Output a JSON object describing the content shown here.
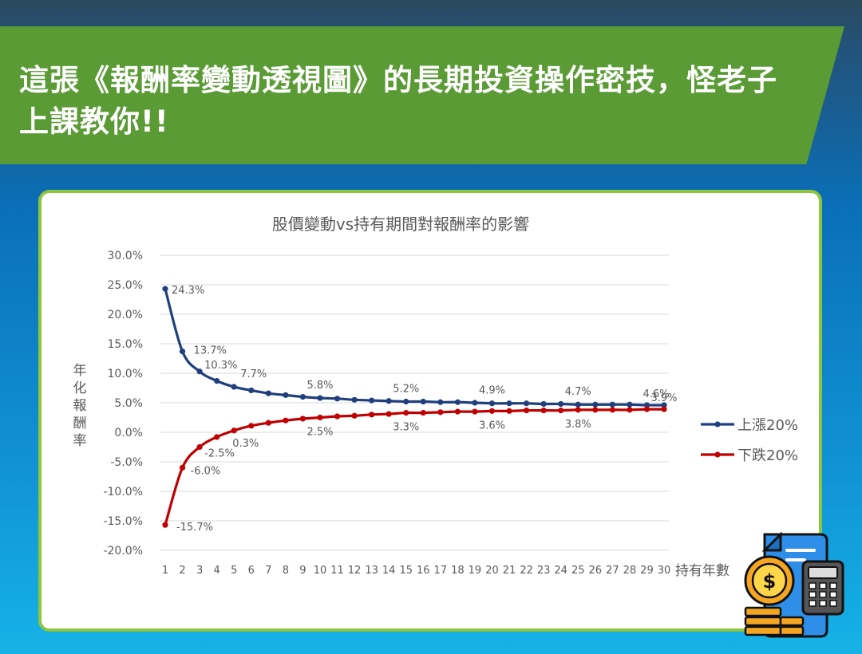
{
  "header": {
    "title": "這張《報酬率變動透視圖》的長期投資操作密技，怪老子上課教你!!"
  },
  "icons": {
    "corner": "finance-calculator-coins-icon"
  },
  "colors": {
    "up": "#1f3f7d",
    "down": "#c00000",
    "banner": "#5a9b35",
    "card_border": "#8cc63f"
  },
  "chart_data": {
    "type": "line",
    "title": "股價變動vs持有期間對報酬率的影響",
    "xlabel": "持有年數",
    "ylabel": "年化報酬率",
    "ylim": [
      -20,
      30
    ],
    "yticks": [
      "30.0%",
      "25.0%",
      "20.0%",
      "15.0%",
      "10.0%",
      "5.0%",
      "0.0%",
      "-5.0%",
      "-10.0%",
      "-15.0%",
      "-20.0%"
    ],
    "x": [
      1,
      2,
      3,
      4,
      5,
      6,
      7,
      8,
      9,
      10,
      11,
      12,
      13,
      14,
      15,
      16,
      17,
      18,
      19,
      20,
      21,
      22,
      23,
      24,
      25,
      26,
      27,
      28,
      29,
      30
    ],
    "grid": true,
    "legend": "right",
    "series": [
      {
        "name": "上漲20%",
        "color": "#1f3f7d",
        "values": [
          24.3,
          13.7,
          10.3,
          8.7,
          7.7,
          7.1,
          6.6,
          6.3,
          6.0,
          5.8,
          5.7,
          5.5,
          5.4,
          5.3,
          5.2,
          5.2,
          5.1,
          5.1,
          5.0,
          4.9,
          4.9,
          4.9,
          4.8,
          4.8,
          4.7,
          4.7,
          4.7,
          4.7,
          4.6,
          4.6
        ],
        "labels": {
          "1": "24.3%",
          "2": "13.7%",
          "3": "10.3%",
          "5": "7.7%",
          "10": "5.8%",
          "15": "5.2%",
          "20": "4.9%",
          "25": "4.7%",
          "30": "4.6%"
        }
      },
      {
        "name": "下跌20%",
        "color": "#c00000",
        "values": [
          -15.7,
          -6.0,
          -2.5,
          -0.8,
          0.3,
          1.1,
          1.6,
          2.0,
          2.3,
          2.5,
          2.7,
          2.8,
          3.0,
          3.1,
          3.3,
          3.3,
          3.4,
          3.5,
          3.5,
          3.6,
          3.6,
          3.7,
          3.7,
          3.7,
          3.8,
          3.8,
          3.8,
          3.8,
          3.9,
          3.9
        ],
        "labels": {
          "1": "-15.7%",
          "2": "-6.0%",
          "3": "-2.5%",
          "5": "0.3%",
          "10": "2.5%",
          "15": "3.3%",
          "20": "3.6%",
          "25": "3.8%",
          "30": "3.9%"
        }
      }
    ]
  }
}
